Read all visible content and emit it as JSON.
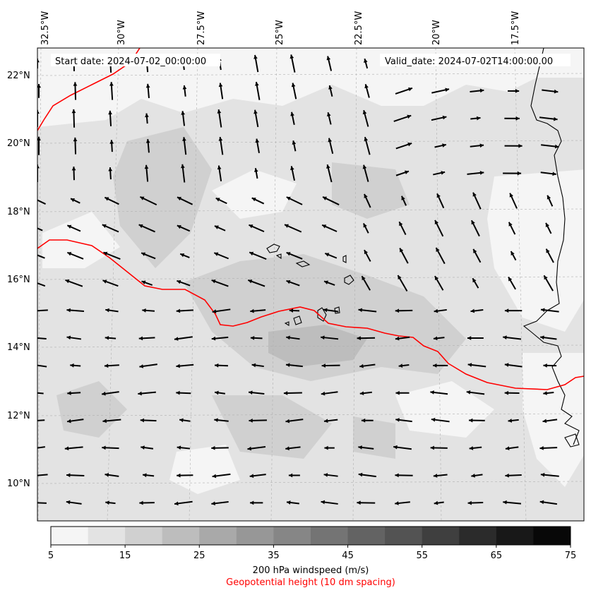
{
  "map": {
    "start_date": "Start date: 2024-07-02_00:00:00",
    "valid_date": "Valid_date: 2024-07-02T14:00:00.00",
    "lon_labels": [
      "32.5°W",
      "30°W",
      "27.5°W",
      "25°W",
      "22.5°W",
      "20°W",
      "17.5°W"
    ],
    "lat_labels": [
      "22°N",
      "20°N",
      "18°N",
      "16°N",
      "14°N",
      "12°N",
      "10°N"
    ],
    "contour_color": "#ff0000",
    "arrow_color": "#000000"
  },
  "colorbar": {
    "ticks": [
      "5",
      "15",
      "25",
      "35",
      "45",
      "55",
      "65",
      "75"
    ],
    "colors": [
      "#f5f5f5",
      "#e3e3e3",
      "#d0d0d0",
      "#bdbdbd",
      "#a9a9a9",
      "#979797",
      "#868686",
      "#747474",
      "#636363",
      "#535353",
      "#3f3f3f",
      "#2b2b2b",
      "#181818",
      "#080808"
    ],
    "label": "200 hPa windspeed (m/s)",
    "sublabel": "Geopotential height (10 dm spacing)"
  }
}
